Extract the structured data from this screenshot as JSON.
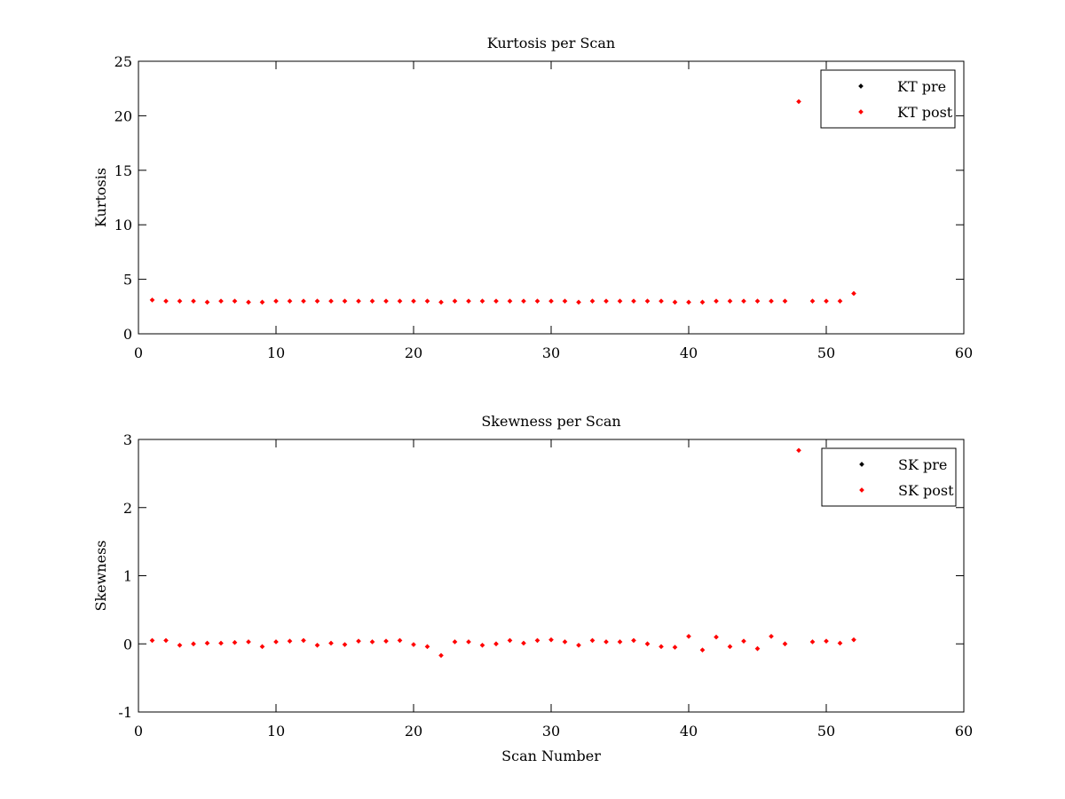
{
  "chart_data": [
    {
      "type": "scatter",
      "title": "Kurtosis per Scan",
      "xlabel": "",
      "ylabel": "Kurtosis",
      "xlim": [
        0,
        60
      ],
      "ylim": [
        0,
        25
      ],
      "xticks": [
        0,
        10,
        20,
        30,
        40,
        50,
        60
      ],
      "yticks": [
        0,
        5,
        10,
        15,
        20,
        25
      ],
      "legend_position": "top-right",
      "series": [
        {
          "name": "KT pre",
          "color": "#000000",
          "x": [],
          "y": []
        },
        {
          "name": "KT post",
          "color": "#ff0000",
          "x": [
            1,
            2,
            3,
            4,
            5,
            6,
            7,
            8,
            9,
            10,
            11,
            12,
            13,
            14,
            15,
            16,
            17,
            18,
            19,
            20,
            21,
            22,
            23,
            24,
            25,
            26,
            27,
            28,
            29,
            30,
            31,
            32,
            33,
            34,
            35,
            36,
            37,
            38,
            39,
            40,
            41,
            42,
            43,
            44,
            45,
            46,
            47,
            48,
            49,
            50,
            51,
            52
          ],
          "y": [
            3.1,
            3.0,
            3.0,
            3.0,
            2.9,
            3.0,
            3.0,
            2.9,
            2.9,
            3.0,
            3.0,
            3.0,
            3.0,
            3.0,
            3.0,
            3.0,
            3.0,
            3.0,
            3.0,
            3.0,
            3.0,
            2.9,
            3.0,
            3.0,
            3.0,
            3.0,
            3.0,
            3.0,
            3.0,
            3.0,
            3.0,
            2.9,
            3.0,
            3.0,
            3.0,
            3.0,
            3.0,
            3.0,
            2.9,
            2.9,
            2.9,
            3.0,
            3.0,
            3.0,
            3.0,
            3.0,
            3.0,
            21.3,
            3.0,
            3.0,
            3.0,
            3.7
          ]
        }
      ]
    },
    {
      "type": "scatter",
      "title": "Skewness per Scan",
      "xlabel": "Scan Number",
      "ylabel": "Skewness",
      "xlim": [
        0,
        60
      ],
      "ylim": [
        -1,
        3
      ],
      "xticks": [
        0,
        10,
        20,
        30,
        40,
        50,
        60
      ],
      "yticks": [
        -1,
        0,
        1,
        2,
        3
      ],
      "legend_position": "top-right",
      "series": [
        {
          "name": "SK pre",
          "color": "#000000",
          "x": [],
          "y": []
        },
        {
          "name": "SK post",
          "color": "#ff0000",
          "x": [
            1,
            2,
            3,
            4,
            5,
            6,
            7,
            8,
            9,
            10,
            11,
            12,
            13,
            14,
            15,
            16,
            17,
            18,
            19,
            20,
            21,
            22,
            23,
            24,
            25,
            26,
            27,
            28,
            29,
            30,
            31,
            32,
            33,
            34,
            35,
            36,
            37,
            38,
            39,
            40,
            41,
            42,
            43,
            44,
            45,
            46,
            47,
            48,
            49,
            50,
            51,
            52
          ],
          "y": [
            0.05,
            0.05,
            -0.02,
            0.0,
            0.01,
            0.01,
            0.02,
            0.03,
            -0.04,
            0.03,
            0.04,
            0.05,
            -0.02,
            0.01,
            -0.01,
            0.04,
            0.03,
            0.04,
            0.05,
            -0.01,
            -0.04,
            -0.17,
            0.03,
            0.03,
            -0.02,
            0.0,
            0.05,
            0.01,
            0.05,
            0.06,
            0.03,
            -0.02,
            0.05,
            0.03,
            0.03,
            0.05,
            0.0,
            -0.04,
            -0.05,
            0.11,
            -0.09,
            0.1,
            -0.04,
            0.04,
            -0.07,
            0.11,
            0.0,
            2.84,
            0.03,
            0.04,
            0.01,
            0.06
          ]
        }
      ]
    }
  ]
}
